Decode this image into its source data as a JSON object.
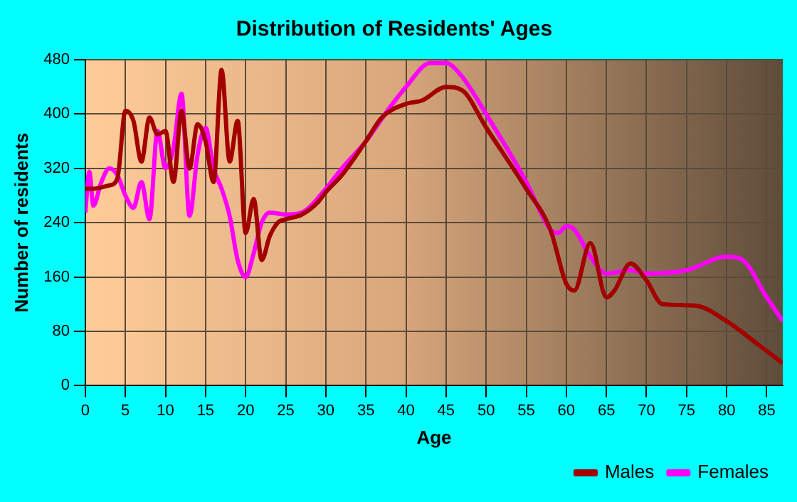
{
  "chart_data": {
    "type": "line",
    "title": "Distribution of Residents' Ages",
    "xlabel": "Age",
    "ylabel": "Number of residents",
    "xlim": [
      0,
      87
    ],
    "xticks": [
      0,
      5,
      10,
      15,
      20,
      25,
      30,
      35,
      40,
      45,
      50,
      55,
      60,
      65,
      70,
      75,
      80,
      85
    ],
    "ylim": [
      0,
      480
    ],
    "yticks": [
      0,
      80,
      160,
      240,
      320,
      400,
      480
    ],
    "grid": true,
    "legend": "bottom right",
    "marker": "none",
    "line_style": "solid",
    "series": [
      {
        "name": "Males",
        "color": "#a30000",
        "x": [
          0,
          1,
          2,
          3,
          4,
          5,
          6,
          7,
          8,
          9,
          10,
          11,
          12,
          13,
          14,
          15,
          16,
          17,
          18,
          19,
          20,
          21,
          22,
          23,
          24,
          25,
          27,
          29,
          30,
          32,
          35,
          37,
          40,
          42,
          45,
          47,
          50,
          55,
          58,
          60,
          61,
          63,
          65,
          66,
          68,
          70,
          72,
          76,
          80,
          84,
          87
        ],
        "values": [
          290,
          290,
          292,
          295,
          305,
          405,
          390,
          330,
          395,
          370,
          375,
          300,
          405,
          320,
          385,
          360,
          300,
          465,
          330,
          390,
          225,
          275,
          185,
          220,
          240,
          245,
          252,
          270,
          285,
          310,
          360,
          395,
          415,
          420,
          440,
          435,
          380,
          290,
          230,
          150,
          140,
          210,
          130,
          140,
          180,
          155,
          120,
          118,
          95,
          60,
          33
        ]
      },
      {
        "name": "Females",
        "color": "#ff00ff",
        "x": [
          0,
          0.5,
          1,
          2,
          3,
          4,
          5,
          6,
          7,
          8,
          9,
          10,
          11,
          12,
          13,
          14,
          15,
          16,
          17,
          18,
          19,
          20,
          21,
          22,
          23,
          25,
          27,
          30,
          32,
          35,
          38,
          40,
          43,
          45,
          47,
          50,
          55,
          58,
          59,
          60,
          61,
          63,
          65,
          68,
          70,
          75,
          80,
          82,
          85,
          87
        ],
        "values": [
          255,
          315,
          265,
          300,
          320,
          310,
          280,
          262,
          300,
          245,
          375,
          320,
          350,
          430,
          250,
          340,
          380,
          320,
          290,
          250,
          185,
          160,
          195,
          240,
          255,
          252,
          255,
          290,
          320,
          360,
          410,
          440,
          475,
          475,
          455,
          400,
          300,
          230,
          225,
          235,
          230,
          190,
          165,
          170,
          165,
          170,
          190,
          185,
          130,
          95
        ]
      }
    ]
  }
}
